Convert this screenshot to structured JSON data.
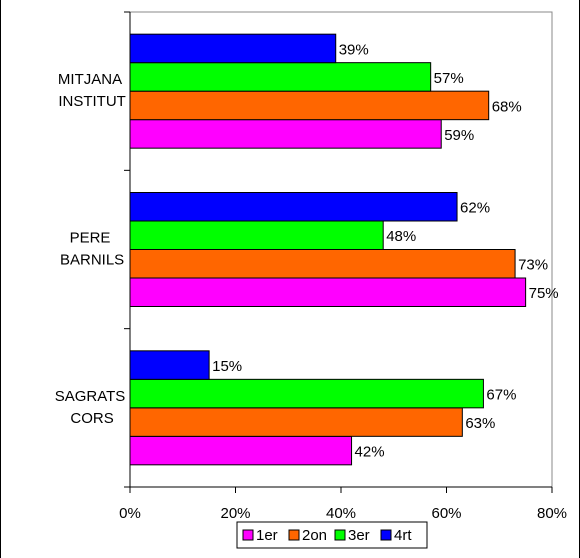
{
  "chart_data": {
    "type": "bar",
    "orientation": "horizontal",
    "categories": [
      "MITJANA INSTITUT",
      "PERE BARNILS",
      "SAGRATS CORS"
    ],
    "series": [
      {
        "name": "1er",
        "color": "#ff00ff",
        "values": [
          59,
          75,
          42
        ],
        "value_labels": [
          "59%",
          "75%",
          "42%"
        ]
      },
      {
        "name": "2on",
        "color": "#ff6600",
        "values": [
          68,
          73,
          63
        ],
        "value_labels": [
          "68%",
          "73%",
          "63%"
        ]
      },
      {
        "name": "3er",
        "color": "#00ff00",
        "values": [
          57,
          48,
          67
        ],
        "value_labels": [
          "57%",
          "48%",
          "67%"
        ]
      },
      {
        "name": "4rt",
        "color": "#0000ff",
        "values": [
          39,
          62,
          15
        ],
        "value_labels": [
          "39%",
          "62%",
          "15%"
        ]
      }
    ],
    "xlim": [
      0,
      80
    ],
    "xticks": [
      {
        "value": 0,
        "label": "0%"
      },
      {
        "value": 20,
        "label": "20%"
      },
      {
        "value": 40,
        "label": "40%"
      },
      {
        "value": 60,
        "label": "60%"
      },
      {
        "value": 80,
        "label": "80%"
      }
    ],
    "grid": false,
    "legend": "bottom"
  }
}
